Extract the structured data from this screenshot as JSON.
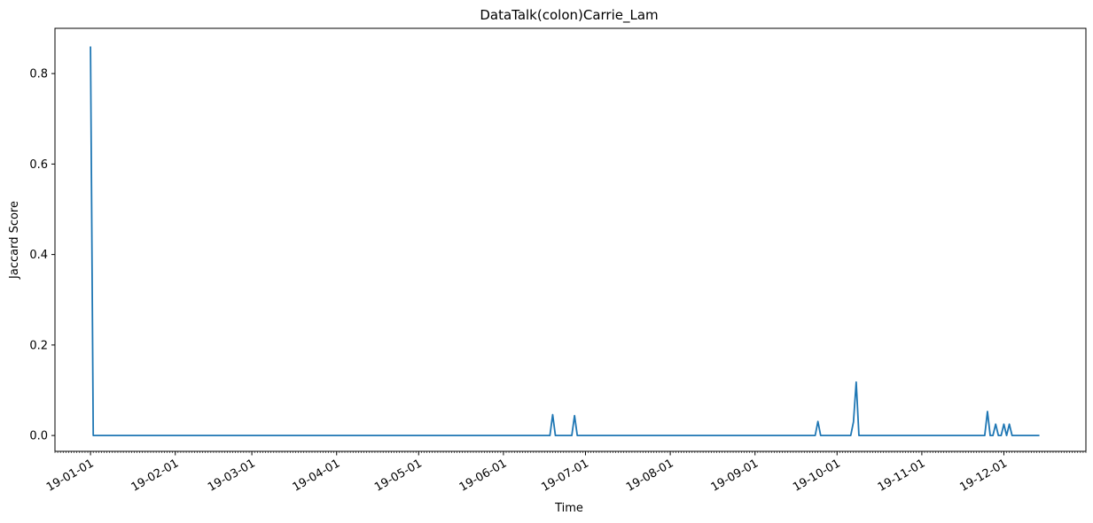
{
  "chart_data": {
    "type": "line",
    "title": "DataTalk(colon)Carrie_Lam",
    "xlabel": "Time",
    "ylabel": "Jaccard Score",
    "xlim": [
      "2018-12-19",
      "2019-12-31"
    ],
    "ylim": [
      -0.035,
      0.9
    ],
    "grid": false,
    "legend": "none",
    "line_color": "#1f77b4",
    "x_tick_labels": [
      "19-01-01",
      "19-02-01",
      "19-03-01",
      "19-04-01",
      "19-05-01",
      "19-06-01",
      "19-07-01",
      "19-08-01",
      "19-09-01",
      "19-10-01",
      "19-11-01",
      "19-12-01"
    ],
    "x_tick_dates": [
      "2019-01-01",
      "2019-02-01",
      "2019-03-01",
      "2019-04-01",
      "2019-05-01",
      "2019-06-01",
      "2019-07-01",
      "2019-08-01",
      "2019-09-01",
      "2019-10-01",
      "2019-11-01",
      "2019-12-01"
    ],
    "y_ticks": [
      0.0,
      0.2,
      0.4,
      0.6,
      0.8
    ],
    "y_tick_labels": [
      "0.0",
      "0.2",
      "0.4",
      "0.6",
      "0.8"
    ],
    "series": [
      {
        "x": [
          "2019-01-01",
          "2019-01-02",
          "2019-06-18",
          "2019-06-19",
          "2019-06-20",
          "2019-06-26",
          "2019-06-27",
          "2019-06-28",
          "2019-09-23",
          "2019-09-24",
          "2019-09-25",
          "2019-10-06",
          "2019-10-07",
          "2019-10-08",
          "2019-10-09",
          "2019-11-24",
          "2019-11-25",
          "2019-11-26",
          "2019-11-27",
          "2019-11-28",
          "2019-11-29",
          "2019-11-30",
          "2019-12-01",
          "2019-12-02",
          "2019-12-03",
          "2019-12-04",
          "2019-12-05",
          "2019-12-14"
        ],
        "values": [
          0.86,
          0.0,
          0.0,
          0.046,
          0.0,
          0.0,
          0.044,
          0.0,
          0.0,
          0.031,
          0.0,
          0.0,
          0.03,
          0.118,
          0.0,
          0.0,
          0.053,
          0.0,
          0.0,
          0.025,
          0.0,
          0.0,
          0.025,
          0.0,
          0.025,
          0.0,
          0.0,
          0.0
        ]
      }
    ]
  }
}
